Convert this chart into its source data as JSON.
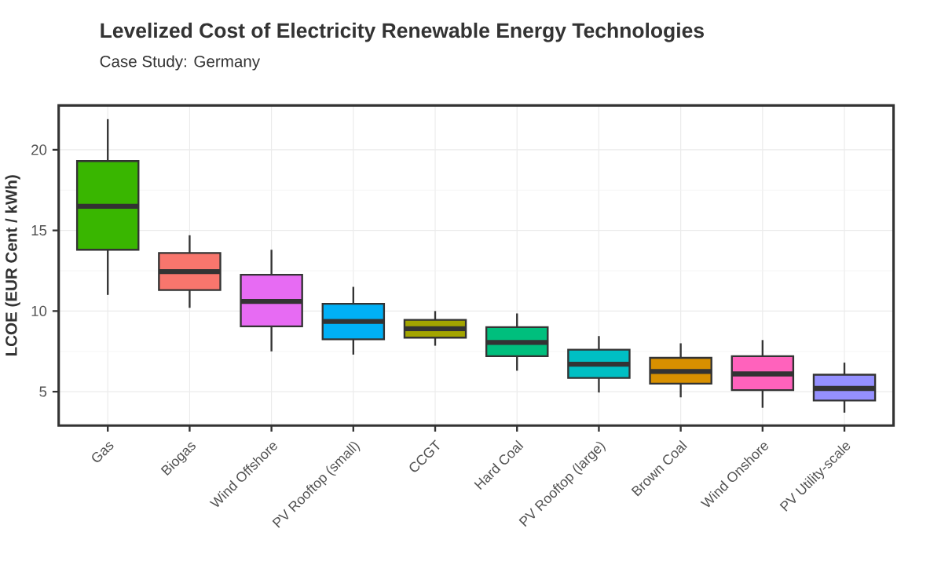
{
  "chart_data": {
    "type": "box",
    "title": "Levelized Cost of Electricity Renewable Energy Technologies",
    "subtitle": "Case Study: Germany",
    "ylabel": "LCOE (EUR Cent / kWh)",
    "categories": [
      "Gas",
      "Biogas",
      "Wind Offshore",
      "PV Rooftop (small)",
      "CCGT",
      "Hard Coal",
      "PV Rooftop (large)",
      "Brown Coal",
      "Wind Onshore",
      "PV Utility-scale"
    ],
    "boxes": [
      {
        "low": 11.0,
        "q1": 13.8,
        "median": 16.5,
        "q3": 19.3,
        "high": 21.9
      },
      {
        "low": 10.2,
        "q1": 11.3,
        "median": 12.45,
        "q3": 13.6,
        "high": 14.7
      },
      {
        "low": 7.5,
        "q1": 9.05,
        "median": 10.6,
        "q3": 12.25,
        "high": 13.8
      },
      {
        "low": 7.3,
        "q1": 8.25,
        "median": 9.35,
        "q3": 10.45,
        "high": 11.5
      },
      {
        "low": 7.85,
        "q1": 8.35,
        "median": 8.9,
        "q3": 9.45,
        "high": 10.0
      },
      {
        "low": 6.3,
        "q1": 7.2,
        "median": 8.05,
        "q3": 9.0,
        "high": 9.85
      },
      {
        "low": 4.95,
        "q1": 5.85,
        "median": 6.7,
        "q3": 7.6,
        "high": 8.45
      },
      {
        "low": 4.65,
        "q1": 5.5,
        "median": 6.25,
        "q3": 7.1,
        "high": 8.0
      },
      {
        "low": 4.0,
        "q1": 5.1,
        "median": 6.1,
        "q3": 7.2,
        "high": 8.2
      },
      {
        "low": 3.7,
        "q1": 4.45,
        "median": 5.2,
        "q3": 6.05,
        "high": 6.8
      }
    ],
    "colors": [
      "#39b600",
      "#f8766d",
      "#e76bf3",
      "#00b0f6",
      "#a3a500",
      "#00bf7d",
      "#00bfc4",
      "#d89000",
      "#ff62bc",
      "#9590ff"
    ],
    "ylim": [
      2.9,
      22.75
    ],
    "yticks": [
      5,
      10,
      15,
      20
    ],
    "grid": true
  }
}
